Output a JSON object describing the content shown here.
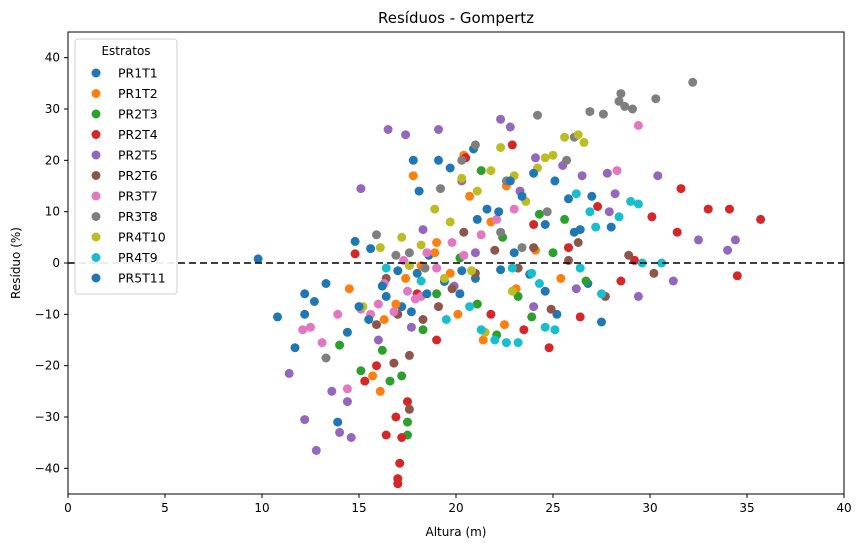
{
  "chart_data": {
    "type": "scatter",
    "title": "Resíduos - Gompertz",
    "xlabel": "Altura (m)",
    "ylabel": "Resíduo (%)",
    "xlim": [
      0,
      40
    ],
    "ylim": [
      -45,
      45
    ],
    "xticks": [
      0,
      5,
      10,
      15,
      20,
      25,
      30,
      35,
      40
    ],
    "yticks": [
      -40,
      -30,
      -20,
      -10,
      0,
      10,
      20,
      30,
      40
    ],
    "grid": false,
    "reference_line": {
      "y": 0,
      "style": "dashed",
      "color": "#000000"
    },
    "legend": {
      "title": "Estratos",
      "placement": "top-left"
    },
    "series": [
      {
        "name": "PR1T1",
        "color": "#1f77b4",
        "points": [
          [
            9.8,
            0.8
          ],
          [
            14.8,
            4.2
          ],
          [
            15.6,
            2.8
          ],
          [
            16.4,
            -6.5
          ],
          [
            17.2,
            -8.5
          ],
          [
            18.0,
            -2.0
          ],
          [
            18.6,
            1.5
          ],
          [
            19.4,
            -3.6
          ],
          [
            20.2,
            -6.0
          ],
          [
            21.0,
            -3.0
          ],
          [
            22.3,
            -1.3
          ],
          [
            23.0,
            2.0
          ],
          [
            23.8,
            -2.2
          ],
          [
            24.6,
            -5.5
          ],
          [
            25.2,
            -10.0
          ],
          [
            26.1,
            6.0
          ],
          [
            26.8,
            -4.0
          ],
          [
            18.1,
            14.0
          ],
          [
            20.9,
            22.2
          ]
        ]
      },
      {
        "name": "PR1T2",
        "color": "#ff7f0e",
        "points": [
          [
            14.5,
            -5.0
          ],
          [
            15.7,
            -22.0
          ],
          [
            16.1,
            -25.0
          ],
          [
            16.9,
            -8.0
          ],
          [
            17.4,
            -3.0
          ],
          [
            18.2,
            -0.5
          ],
          [
            19.0,
            4.0
          ],
          [
            19.7,
            -2.0
          ],
          [
            20.1,
            -10.0
          ],
          [
            21.4,
            -15.0
          ],
          [
            22.5,
            -12.0
          ],
          [
            23.1,
            -5.0
          ],
          [
            20.7,
            13.0
          ],
          [
            21.8,
            8.0
          ],
          [
            22.6,
            15.0
          ],
          [
            17.8,
            17.0
          ],
          [
            18.9,
            2.0
          ],
          [
            24.1,
            2.5
          ],
          [
            25.4,
            -3.0
          ],
          [
            20.4,
            21.0
          ],
          [
            16.3,
            -11.0
          ]
        ]
      },
      {
        "name": "PR2T3",
        "color": "#2ca02c",
        "points": [
          [
            14.0,
            -16.0
          ],
          [
            15.1,
            -21.0
          ],
          [
            16.2,
            -17.0
          ],
          [
            16.6,
            -23.0
          ],
          [
            17.2,
            -22.0
          ],
          [
            17.5,
            -31.0
          ],
          [
            17.5,
            -33.5
          ],
          [
            18.3,
            -13.0
          ],
          [
            19.0,
            -6.0
          ],
          [
            20.2,
            1.0
          ],
          [
            21.1,
            -8.0
          ],
          [
            22.1,
            -14.0
          ],
          [
            23.2,
            -6.5
          ],
          [
            23.9,
            -10.5
          ],
          [
            24.3,
            9.5
          ],
          [
            25.0,
            2.0
          ],
          [
            25.6,
            8.5
          ],
          [
            22.4,
            5.0
          ],
          [
            26.7,
            -3.5
          ],
          [
            21.3,
            18.0
          ]
        ]
      },
      {
        "name": "PR2T4",
        "color": "#d62728",
        "points": [
          [
            14.8,
            1.8
          ],
          [
            15.3,
            -23.0
          ],
          [
            15.9,
            -20.0
          ],
          [
            16.4,
            -33.5
          ],
          [
            16.9,
            -30.0
          ],
          [
            17.0,
            -42.0
          ],
          [
            17.0,
            -43.0
          ],
          [
            17.1,
            -39.0
          ],
          [
            17.2,
            -34.0
          ],
          [
            17.5,
            -27.0
          ],
          [
            18.0,
            -6.0
          ],
          [
            19.0,
            -15.0
          ],
          [
            20.5,
            20.5
          ],
          [
            21.8,
            -10.0
          ],
          [
            22.9,
            23.0
          ],
          [
            23.5,
            -13.0
          ],
          [
            24.8,
            -16.5
          ],
          [
            26.4,
            -10.5
          ],
          [
            27.3,
            11.0
          ],
          [
            28.5,
            -3.5
          ],
          [
            30.1,
            9.0
          ],
          [
            31.4,
            6.0
          ],
          [
            33.0,
            10.5
          ],
          [
            34.1,
            10.5
          ],
          [
            35.7,
            8.5
          ],
          [
            34.5,
            -2.5
          ],
          [
            31.6,
            14.5
          ],
          [
            29.2,
            0.5
          ],
          [
            24.0,
            7.5
          ],
          [
            25.8,
            3.0
          ]
        ]
      },
      {
        "name": "PR2T5",
        "color": "#9467bd",
        "points": [
          [
            11.4,
            -21.5
          ],
          [
            12.2,
            -30.5
          ],
          [
            12.8,
            -36.5
          ],
          [
            13.6,
            -25.0
          ],
          [
            14.0,
            -33.0
          ],
          [
            14.4,
            -27.0
          ],
          [
            14.6,
            -34.0
          ],
          [
            15.1,
            14.5
          ],
          [
            16.5,
            26.0
          ],
          [
            17.4,
            25.0
          ],
          [
            19.1,
            26.0
          ],
          [
            20.3,
            16.0
          ],
          [
            22.3,
            28.0
          ],
          [
            22.8,
            26.5
          ],
          [
            23.3,
            14.0
          ],
          [
            24.1,
            20.5
          ],
          [
            25.5,
            19.0
          ],
          [
            26.5,
            17.0
          ],
          [
            27.8,
            17.5
          ],
          [
            28.2,
            13.5
          ],
          [
            29.4,
            -6.5
          ],
          [
            30.4,
            17.0
          ],
          [
            31.2,
            -3.5
          ],
          [
            32.5,
            4.5
          ],
          [
            34.0,
            2.5
          ],
          [
            34.4,
            4.5
          ],
          [
            18.3,
            6.5
          ],
          [
            19.9,
            -4.5
          ],
          [
            21.0,
            2.0
          ],
          [
            24.0,
            -8.5
          ],
          [
            26.2,
            -5.0
          ],
          [
            27.9,
            10.0
          ],
          [
            16.0,
            -15.0
          ],
          [
            17.7,
            -12.5
          ]
        ]
      },
      {
        "name": "PR2T6",
        "color": "#8c564b",
        "points": [
          [
            15.9,
            -12.0
          ],
          [
            16.4,
            -3.0
          ],
          [
            17.0,
            -10.0
          ],
          [
            17.6,
            -18.0
          ],
          [
            17.6,
            -28.5
          ],
          [
            18.3,
            -11.0
          ],
          [
            19.1,
            -8.5
          ],
          [
            19.8,
            -5.0
          ],
          [
            21.0,
            -2.0
          ],
          [
            22.0,
            2.5
          ],
          [
            23.2,
            -1.0
          ],
          [
            24.0,
            3.0
          ],
          [
            24.9,
            -9.0
          ],
          [
            25.8,
            0.5
          ],
          [
            26.3,
            4.0
          ],
          [
            27.7,
            -6.5
          ],
          [
            28.9,
            1.5
          ],
          [
            30.2,
            -2.0
          ],
          [
            16.8,
            -19.5
          ],
          [
            20.4,
            6.0
          ]
        ]
      },
      {
        "name": "PR3T7",
        "color": "#e377c2",
        "points": [
          [
            12.1,
            -13.0
          ],
          [
            12.5,
            -12.5
          ],
          [
            13.1,
            -15.5
          ],
          [
            13.9,
            -10.0
          ],
          [
            14.4,
            -24.5
          ],
          [
            15.1,
            -9.0
          ],
          [
            15.6,
            -10.0
          ],
          [
            16.3,
            -4.0
          ],
          [
            16.8,
            -9.5
          ],
          [
            17.3,
            0.5
          ],
          [
            17.9,
            -7.0
          ],
          [
            18.5,
            2.0
          ],
          [
            19.0,
            -1.0
          ],
          [
            19.8,
            4.0
          ],
          [
            20.4,
            1.5
          ],
          [
            21.3,
            5.5
          ],
          [
            22.1,
            8.5
          ],
          [
            23.0,
            10.5
          ],
          [
            18.2,
            -6.5
          ],
          [
            17.5,
            -5.5
          ],
          [
            29.4,
            26.8
          ],
          [
            28.3,
            18.0
          ],
          [
            16.0,
            -8.0
          ]
        ]
      },
      {
        "name": "PR3T8",
        "color": "#7f7f7f",
        "points": [
          [
            13.3,
            -18.5
          ],
          [
            15.9,
            5.5
          ],
          [
            16.9,
            1.5
          ],
          [
            17.6,
            2.0
          ],
          [
            18.4,
            -1.0
          ],
          [
            19.2,
            14.5
          ],
          [
            20.3,
            20.0
          ],
          [
            21.0,
            23.0
          ],
          [
            22.3,
            6.0
          ],
          [
            23.4,
            3.0
          ],
          [
            24.2,
            28.8
          ],
          [
            25.7,
            20.0
          ],
          [
            26.1,
            24.5
          ],
          [
            26.9,
            29.5
          ],
          [
            27.6,
            29.0
          ],
          [
            28.4,
            31.5
          ],
          [
            28.5,
            33.0
          ],
          [
            28.7,
            30.5
          ],
          [
            29.1,
            30.0
          ],
          [
            30.3,
            32.0
          ],
          [
            32.2,
            35.2
          ],
          [
            22.6,
            16.0
          ],
          [
            24.7,
            10.0
          ]
        ]
      },
      {
        "name": "PR4T10",
        "color": "#bcbd22",
        "points": [
          [
            15.2,
            -8.5
          ],
          [
            16.1,
            3.0
          ],
          [
            17.2,
            5.0
          ],
          [
            18.2,
            3.5
          ],
          [
            18.9,
            10.5
          ],
          [
            19.7,
            8.0
          ],
          [
            20.3,
            16.5
          ],
          [
            21.1,
            14.0
          ],
          [
            21.8,
            18.0
          ],
          [
            22.3,
            22.5
          ],
          [
            23.0,
            17.0
          ],
          [
            23.6,
            12.0
          ],
          [
            24.2,
            18.5
          ],
          [
            24.6,
            20.5
          ],
          [
            25.0,
            21.0
          ],
          [
            25.6,
            24.5
          ],
          [
            26.3,
            25.0
          ],
          [
            26.6,
            23.5
          ],
          [
            19.4,
            -3.0
          ],
          [
            20.8,
            -1.5
          ],
          [
            22.9,
            -5.5
          ],
          [
            17.6,
            -0.5
          ],
          [
            21.5,
            -13.5
          ]
        ]
      },
      {
        "name": "PR4T9",
        "color": "#17becf",
        "points": [
          [
            16.4,
            -1.0
          ],
          [
            18.2,
            -3.5
          ],
          [
            19.5,
            -11.0
          ],
          [
            20.7,
            -8.5
          ],
          [
            21.3,
            -13.0
          ],
          [
            22.0,
            -15.0
          ],
          [
            22.6,
            -15.5
          ],
          [
            23.2,
            -15.5
          ],
          [
            23.9,
            -2.0
          ],
          [
            24.6,
            -12.5
          ],
          [
            25.1,
            -13.0
          ],
          [
            26.2,
            13.5
          ],
          [
            26.9,
            10.0
          ],
          [
            27.5,
            -6.0
          ],
          [
            28.4,
            9.0
          ],
          [
            29.0,
            12.0
          ],
          [
            29.4,
            11.5
          ],
          [
            27.2,
            7.0
          ],
          [
            26.4,
            -1.0
          ],
          [
            22.9,
            -1.0
          ],
          [
            24.3,
            -4.0
          ],
          [
            29.6,
            0.0
          ],
          [
            30.6,
            0.0
          ]
        ]
      },
      {
        "name": "PR5T11",
        "color": "#1f77b4",
        "points": [
          [
            10.8,
            -10.5
          ],
          [
            11.7,
            -16.5
          ],
          [
            12.2,
            -10.0
          ],
          [
            12.7,
            -7.5
          ],
          [
            13.3,
            -4.0
          ],
          [
            13.9,
            -31.0
          ],
          [
            14.4,
            -13.5
          ],
          [
            15.0,
            -8.5
          ],
          [
            15.5,
            -11.0
          ],
          [
            16.2,
            -4.5
          ],
          [
            17.0,
            -1.5
          ],
          [
            17.7,
            -9.5
          ],
          [
            18.5,
            -6.0
          ],
          [
            19.1,
            20.0
          ],
          [
            19.7,
            18.5
          ],
          [
            20.3,
            -1.5
          ],
          [
            21.1,
            8.5
          ],
          [
            21.6,
            10.5
          ],
          [
            22.2,
            10.0
          ],
          [
            22.8,
            16.0
          ],
          [
            23.4,
            13.0
          ],
          [
            24.0,
            17.5
          ],
          [
            24.6,
            7.5
          ],
          [
            25.1,
            16.0
          ],
          [
            25.8,
            12.5
          ],
          [
            26.4,
            6.5
          ],
          [
            27.0,
            13.0
          ],
          [
            27.5,
            -11.5
          ],
          [
            28.0,
            7.0
          ],
          [
            17.8,
            20.0
          ],
          [
            12.2,
            -6.0
          ]
        ]
      }
    ]
  }
}
